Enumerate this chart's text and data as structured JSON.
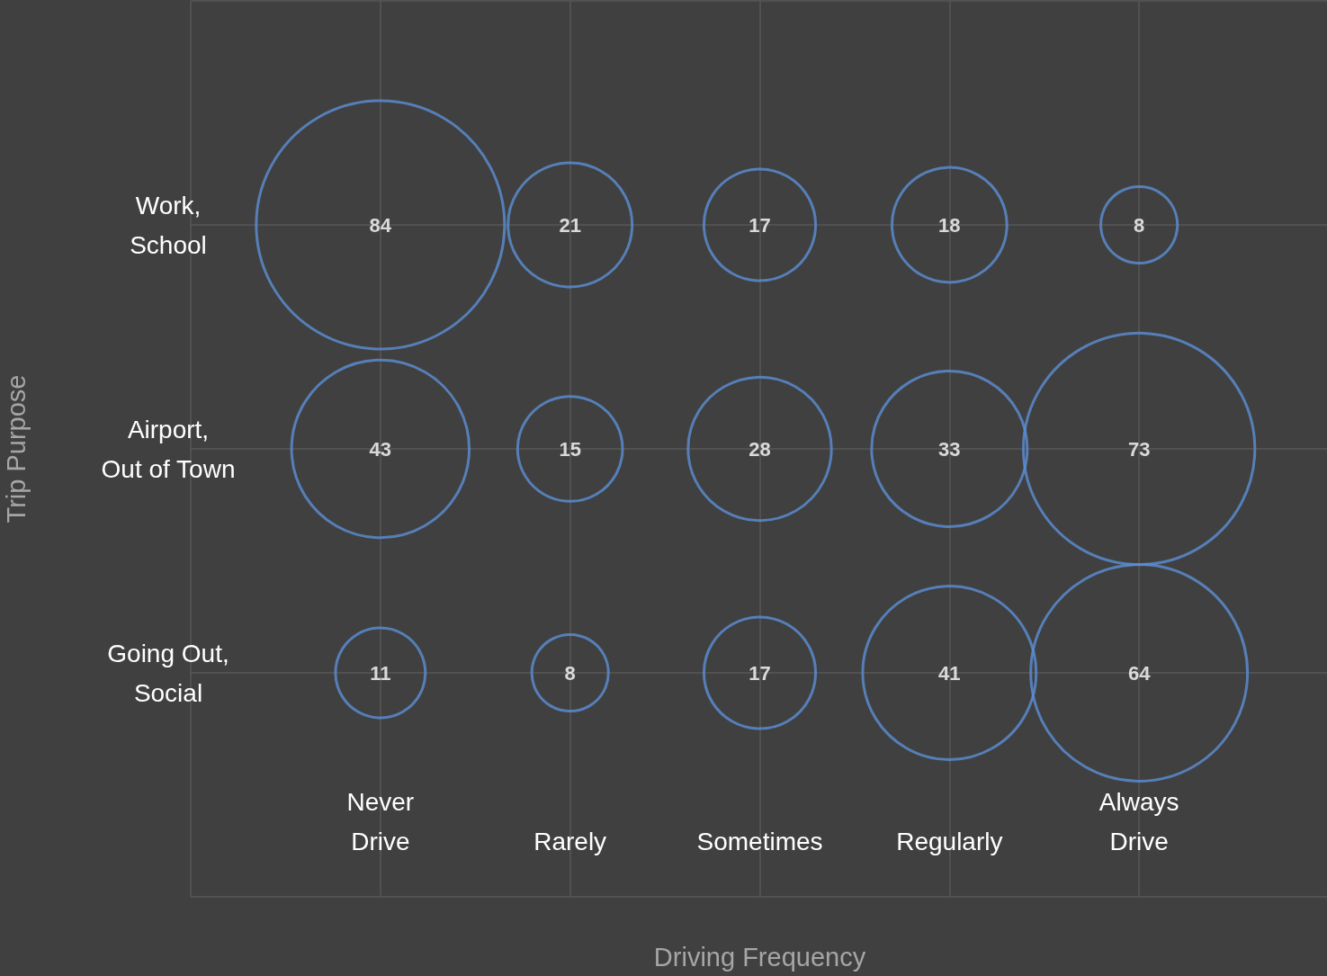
{
  "chart_data": {
    "type": "heatmap",
    "data_labels": true,
    "xlabel": "Driving Frequency",
    "ylabel": "Trip Purpose",
    "categories": [
      "Never\nDrive",
      "Rarely",
      "Sometimes",
      "Regularly",
      "Always\nDrive"
    ],
    "y_categories": [
      "Work,\nSchool",
      "Airport,\nOut of Town",
      "Going Out,\nSocial"
    ],
    "color": "#5b8ed6",
    "cells": [
      [
        84,
        21,
        17,
        18,
        8
      ],
      [
        43,
        15,
        28,
        33,
        73
      ],
      [
        11,
        8,
        17,
        41,
        64
      ]
    ],
    "grid": true
  }
}
